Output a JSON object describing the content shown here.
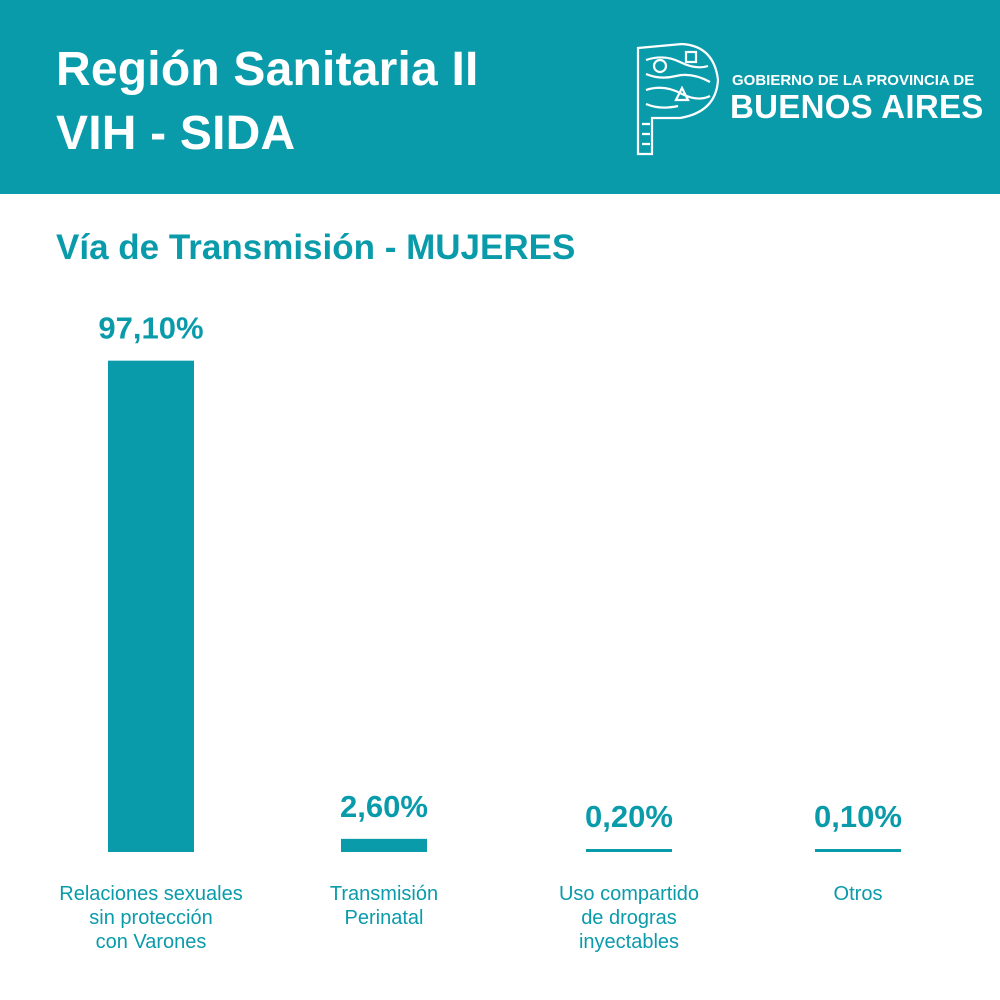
{
  "header": {
    "title_line1": "Región Sanitaria II",
    "title_line2": "VIH - SIDA",
    "logo_line1": "GOBIERNO DE LA PROVINCIA DE",
    "logo_line2": "BUENOS AIRES"
  },
  "colors": {
    "accent": "#0a9bab",
    "background": "#ffffff",
    "header_text": "#ffffff"
  },
  "chart_data": {
    "type": "bar",
    "title": "Vía de Transmisión - MUJERES",
    "categories": [
      "Relaciones sexuales\nsin protección\ncon Varones",
      "Transmisión\nPerinatal",
      "Uso compartido\nde drogras\ninyectables",
      "Otros"
    ],
    "values": [
      97.1,
      2.6,
      0.2,
      0.1
    ],
    "value_labels": [
      "97,10%",
      "2,60%",
      "0,20%",
      "0,10%"
    ],
    "ylim": [
      0,
      100
    ],
    "grid": false
  }
}
